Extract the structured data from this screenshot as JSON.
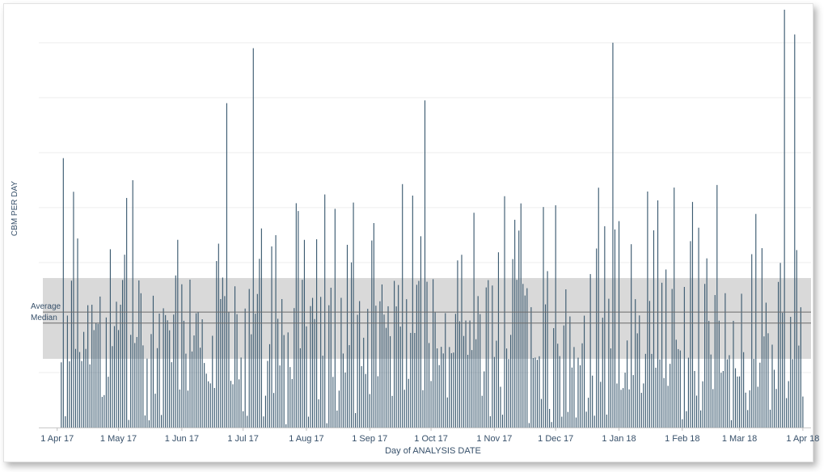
{
  "chart_data": {
    "type": "bar",
    "title": "",
    "xlabel": "Day of ANALYSIS DATE",
    "ylabel": "CBM PER DAY",
    "x_ticks": [
      "1 Apr 17",
      "1 May 17",
      "1 Jun 17",
      "1 Jul 17",
      "1 Aug 17",
      "1 Sep 17",
      "1 Oct 17",
      "1 Nov 17",
      "1 Dec 17",
      "1 Jan 18",
      "1 Feb 18",
      "1 Mar 18",
      "1 Apr 18"
    ],
    "x_range": [
      "2017-03-23",
      "2018-04-05"
    ],
    "ylim": [
      0,
      76
    ],
    "grid": true,
    "bar_color": "#3b5a70",
    "reference_lines": [
      {
        "label": "Average",
        "value": 21.0
      },
      {
        "label": "Median",
        "value": 19.0
      }
    ],
    "reference_band": {
      "from": 12.5,
      "to": 27.2,
      "color": "#d9d9d9"
    },
    "peaks": [
      {
        "date": "2017-04-04",
        "value": 49.0
      },
      {
        "date": "2017-06-23",
        "value": 59.0
      },
      {
        "date": "2017-07-06",
        "value": 69.0
      },
      {
        "date": "2017-09-28",
        "value": 59.5
      },
      {
        "date": "2017-12-29",
        "value": 70.0
      },
      {
        "date": "2018-03-23",
        "value": 76.0
      },
      {
        "date": "2018-03-28",
        "value": 71.5
      }
    ]
  }
}
